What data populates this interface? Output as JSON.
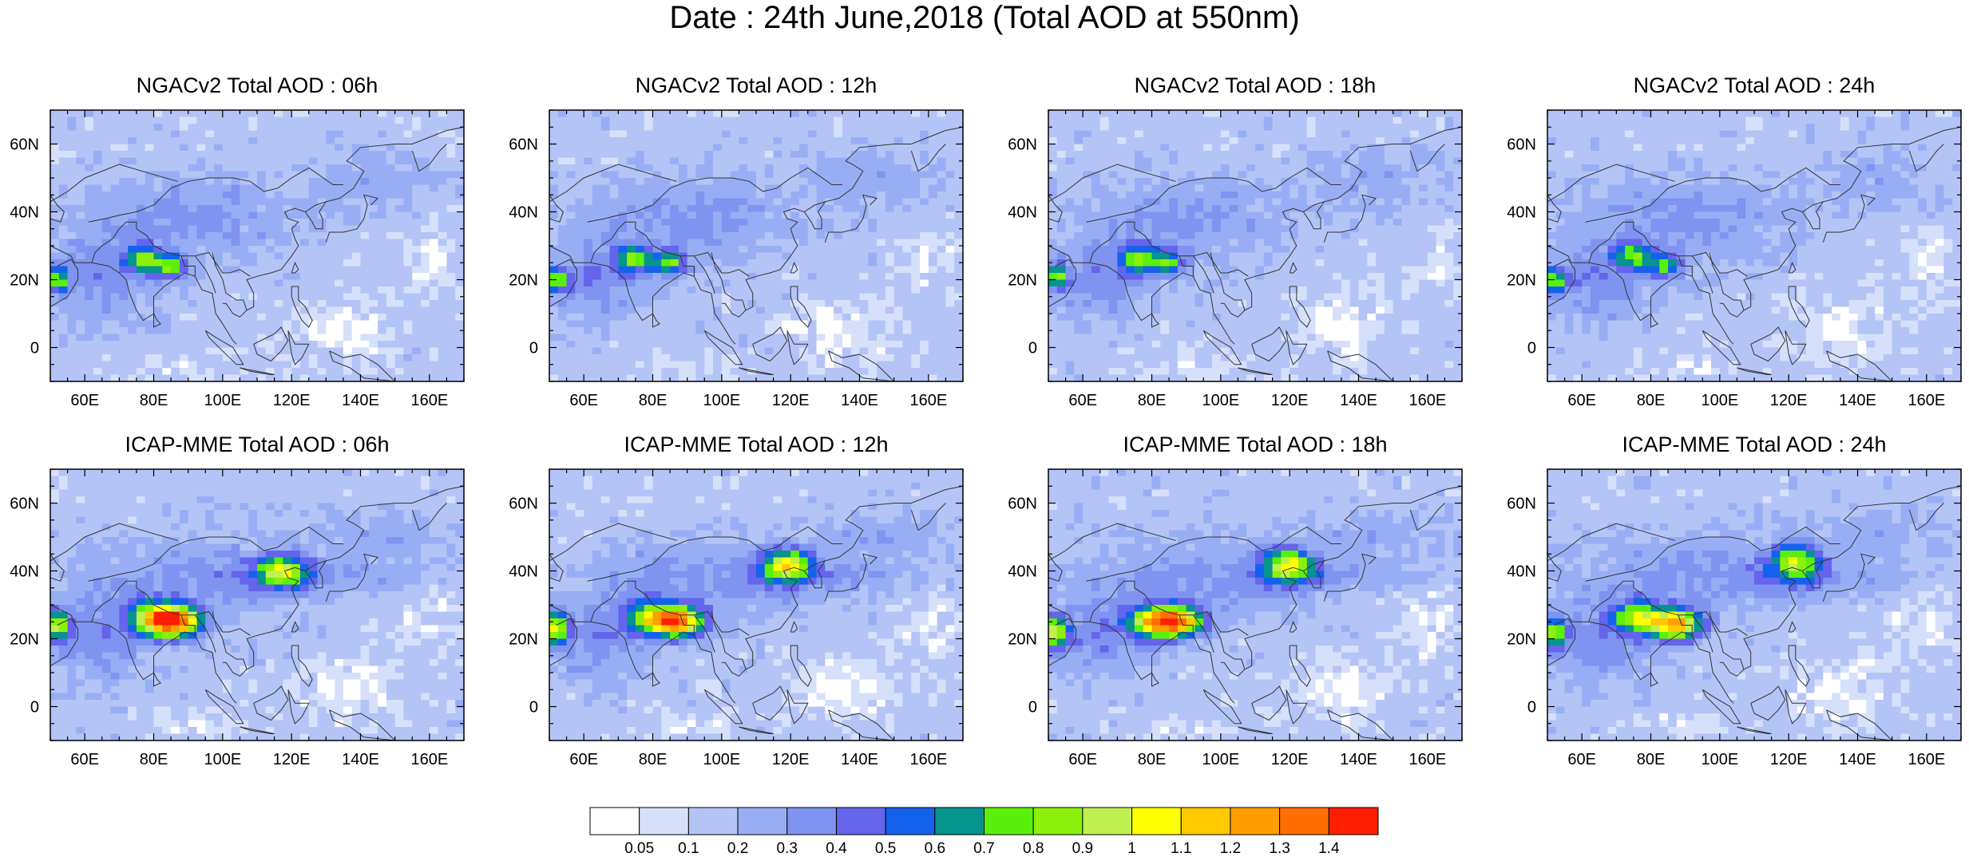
{
  "figure": {
    "title": "Date : 24th June,2018 (Total AOD at 550nm)"
  },
  "panels": [
    {
      "title": "NGACv2 Total AOD : 06h",
      "model": "NGACv2",
      "hour": "06h"
    },
    {
      "title": "NGACv2 Total AOD : 12h",
      "model": "NGACv2",
      "hour": "12h"
    },
    {
      "title": "NGACv2 Total AOD : 18h",
      "model": "NGACv2",
      "hour": "18h"
    },
    {
      "title": "NGACv2 Total AOD : 24h",
      "model": "NGACv2",
      "hour": "24h"
    },
    {
      "title": "ICAP-MME Total AOD : 06h",
      "model": "ICAP-MME",
      "hour": "06h"
    },
    {
      "title": "ICAP-MME Total AOD : 12h",
      "model": "ICAP-MME",
      "hour": "12h"
    },
    {
      "title": "ICAP-MME Total AOD : 18h",
      "model": "ICAP-MME",
      "hour": "18h"
    },
    {
      "title": "ICAP-MME Total AOD : 24h",
      "model": "ICAP-MME",
      "hour": "24h"
    }
  ],
  "axes": {
    "lon_range": [
      50,
      170
    ],
    "lat_range": [
      -10,
      70
    ],
    "x_ticks": [
      {
        "value": 60,
        "label": "60E"
      },
      {
        "value": 80,
        "label": "80E"
      },
      {
        "value": 100,
        "label": "100E"
      },
      {
        "value": 120,
        "label": "120E"
      },
      {
        "value": 140,
        "label": "140E"
      },
      {
        "value": 160,
        "label": "160E"
      }
    ],
    "y_ticks": [
      {
        "value": 0,
        "label": "0"
      },
      {
        "value": 20,
        "label": "20N"
      },
      {
        "value": 40,
        "label": "40N"
      },
      {
        "value": 60,
        "label": "60N"
      }
    ]
  },
  "colorbar": {
    "labels": [
      "0.05",
      "0.1",
      "0.2",
      "0.3",
      "0.4",
      "0.5",
      "0.6",
      "0.7",
      "0.8",
      "0.9",
      "1",
      "1.1",
      "1.2",
      "1.3",
      "1.4"
    ],
    "colors": [
      "#ffffff",
      "#d6e0fa",
      "#b4c4f6",
      "#98aef4",
      "#7f94f0",
      "#6464ec",
      "#1462ec",
      "#06948e",
      "#5af00c",
      "#8cf00a",
      "#bef050",
      "#ffff00",
      "#ffc800",
      "#ff9e00",
      "#ff6e00",
      "#ff1e00"
    ]
  },
  "chart_data": {
    "type": "heatmap",
    "title": "Date : 24th June,2018 (Total AOD at 550nm)",
    "variable": "Total AOD at 550nm",
    "xlim": [
      50,
      170
    ],
    "ylim": [
      -10,
      70
    ],
    "legend": "bottom",
    "bins": [
      0.05,
      0.1,
      0.2,
      0.3,
      0.4,
      0.5,
      0.6,
      0.7,
      0.8,
      0.9,
      1,
      1.1,
      1.2,
      1.3,
      1.4
    ],
    "maps": [
      {
        "title": "NGACv2 Total AOD : 06h",
        "hotspots": [
          {
            "lon": 52,
            "lat": 20,
            "aod": 0.85
          },
          {
            "lon": 77,
            "lat": 26,
            "aod": 0.8
          },
          {
            "lon": 85,
            "lat": 24,
            "aod": 0.8
          }
        ]
      },
      {
        "title": "NGACv2 Total AOD : 12h",
        "hotspots": [
          {
            "lon": 52,
            "lat": 20,
            "aod": 0.85
          },
          {
            "lon": 75,
            "lat": 26,
            "aod": 0.8
          },
          {
            "lon": 85,
            "lat": 25,
            "aod": 0.8
          }
        ]
      },
      {
        "title": "NGACv2 Total AOD : 18h",
        "hotspots": [
          {
            "lon": 52,
            "lat": 21,
            "aod": 0.85
          },
          {
            "lon": 76,
            "lat": 26,
            "aod": 0.8
          },
          {
            "lon": 84,
            "lat": 25,
            "aod": 0.8
          }
        ]
      },
      {
        "title": "NGACv2 Total AOD : 24h",
        "hotspots": [
          {
            "lon": 52,
            "lat": 20,
            "aod": 0.8
          },
          {
            "lon": 75,
            "lat": 27,
            "aod": 0.8
          },
          {
            "lon": 84,
            "lat": 24,
            "aod": 0.75
          }
        ]
      },
      {
        "title": "ICAP-MME Total AOD : 06h",
        "hotspots": [
          {
            "lon": 52,
            "lat": 24,
            "aod": 1.0
          },
          {
            "lon": 80,
            "lat": 26,
            "aod": 1.0
          },
          {
            "lon": 87,
            "lat": 25,
            "aod": 1.35
          },
          {
            "lon": 117,
            "lat": 40,
            "aod": 0.9
          }
        ]
      },
      {
        "title": "ICAP-MME Total AOD : 12h",
        "hotspots": [
          {
            "lon": 52,
            "lat": 23,
            "aod": 1.0
          },
          {
            "lon": 80,
            "lat": 26,
            "aod": 0.9
          },
          {
            "lon": 88,
            "lat": 25,
            "aod": 1.3
          },
          {
            "lon": 119,
            "lat": 42,
            "aod": 1.0
          }
        ]
      },
      {
        "title": "ICAP-MME Total AOD : 18h",
        "hotspots": [
          {
            "lon": 52,
            "lat": 22,
            "aod": 1.0
          },
          {
            "lon": 80,
            "lat": 25,
            "aod": 1.0
          },
          {
            "lon": 88,
            "lat": 25,
            "aod": 1.3
          },
          {
            "lon": 120,
            "lat": 42,
            "aod": 1.0
          }
        ]
      },
      {
        "title": "ICAP-MME Total AOD : 24h",
        "hotspots": [
          {
            "lon": 52,
            "lat": 22,
            "aod": 0.9
          },
          {
            "lon": 77,
            "lat": 26,
            "aod": 0.95
          },
          {
            "lon": 88,
            "lat": 24,
            "aod": 1.25
          },
          {
            "lon": 122,
            "lat": 43,
            "aod": 0.9
          }
        ]
      }
    ]
  }
}
